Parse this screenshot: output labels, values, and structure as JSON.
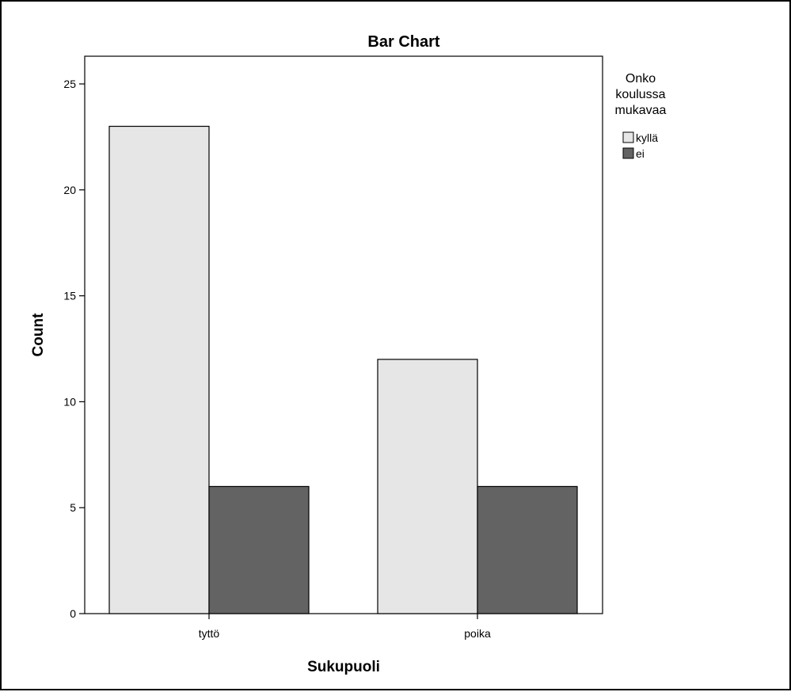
{
  "chart_data": {
    "type": "bar",
    "title": "Bar Chart",
    "xlabel": "Sukupuoli",
    "ylabel": "Count",
    "categories": [
      "tyttö",
      "poika"
    ],
    "series": [
      {
        "name": "kyllä",
        "values": [
          23,
          12
        ],
        "color": "#e6e6e6"
      },
      {
        "name": "ei",
        "values": [
          6,
          6
        ],
        "color": "#636363"
      }
    ],
    "ylim": [
      0,
      26
    ],
    "yticks": [
      0,
      5,
      10,
      15,
      20,
      25
    ],
    "grid": false,
    "legend": {
      "title_lines": [
        "Onko",
        "koulussa",
        "mukavaa"
      ],
      "position": "right"
    }
  }
}
